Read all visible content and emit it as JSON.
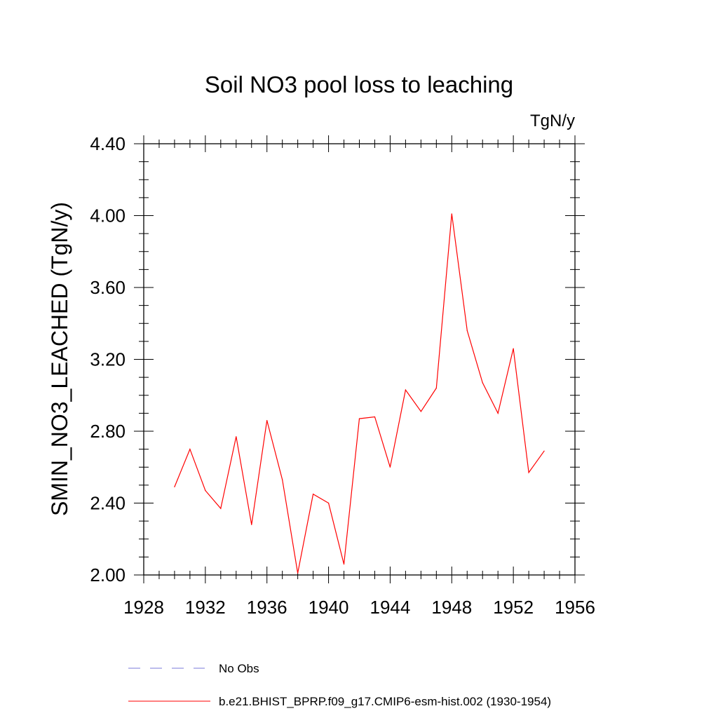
{
  "chart_data": {
    "type": "line",
    "title": "Soil NO3 pool loss to leaching",
    "units": "TgN/y",
    "xlabel": "",
    "ylabel": "SMIN_NO3_LEACHED  (TgN/y)",
    "xlim": [
      1928,
      1956
    ],
    "ylim": [
      2.0,
      4.4
    ],
    "x_ticks": [
      "1928",
      "1932",
      "1936",
      "1940",
      "1944",
      "1948",
      "1952",
      "1956"
    ],
    "y_ticks": [
      "2.00",
      "2.40",
      "2.80",
      "3.20",
      "3.60",
      "4.00",
      "4.40"
    ],
    "grid": false,
    "series": [
      {
        "name": "b.e21.BHIST_BPRP.f09_g17.CMIP6-esm-hist.002 (1930-1954)",
        "color": "#ff0000",
        "style": "solid",
        "x": [
          1930,
          1931,
          1932,
          1933,
          1934,
          1935,
          1936,
          1937,
          1938,
          1939,
          1940,
          1941,
          1942,
          1943,
          1944,
          1945,
          1946,
          1947,
          1948,
          1949,
          1950,
          1951,
          1952,
          1953,
          1954
        ],
        "values": [
          2.49,
          2.7,
          2.47,
          2.37,
          2.77,
          2.28,
          2.86,
          2.53,
          2.01,
          2.45,
          2.4,
          2.06,
          2.87,
          2.88,
          2.6,
          3.03,
          2.91,
          3.04,
          4.01,
          3.36,
          3.07,
          2.9,
          3.26,
          2.57,
          2.69
        ]
      }
    ],
    "legend": {
      "placement": "bottom",
      "entries": [
        {
          "label": "No Obs",
          "color": "#7a7ad8",
          "style": "dashed"
        },
        {
          "label": "b.e21.BHIST_BPRP.f09_g17.CMIP6-esm-hist.002 (1930-1954)",
          "color": "#ff0000",
          "style": "solid"
        }
      ]
    }
  }
}
